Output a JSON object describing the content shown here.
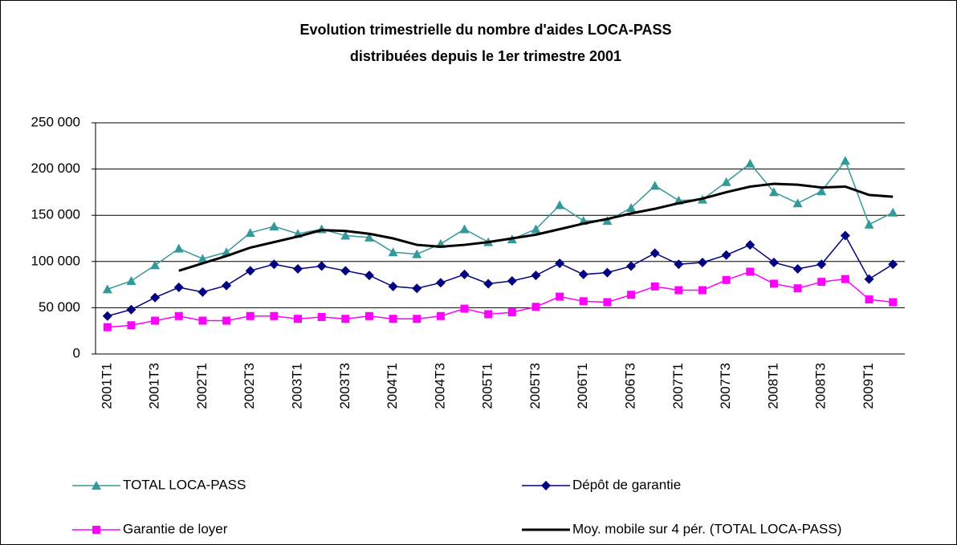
{
  "chart_data": {
    "type": "line",
    "title": [
      "Evolution trimestrielle du nombre d'aides  LOCA-PASS",
      "distribuées depuis le 1er trimestre 2001"
    ],
    "categories": [
      "2001T1",
      null,
      "2001T3",
      null,
      "2002T1",
      null,
      "2002T3",
      null,
      "2003T1",
      null,
      "2003T3",
      null,
      "2004T1",
      null,
      "2004T3",
      null,
      "2005T1",
      null,
      "2005T3",
      null,
      "2006T1",
      null,
      "2006T3",
      null,
      "2007T1",
      null,
      "2007T3",
      null,
      "2008T1",
      null,
      "2008T3",
      null,
      "2009T1",
      null
    ],
    "series": [
      {
        "name": "TOTAL LOCA-PASS",
        "color": "#339999",
        "marker": "triangle",
        "values": [
          70000,
          79000,
          96000,
          114000,
          103000,
          110000,
          131000,
          138000,
          130000,
          135000,
          128000,
          126000,
          110000,
          108000,
          119000,
          135000,
          121000,
          124000,
          135000,
          161000,
          144000,
          144000,
          158000,
          182000,
          166000,
          167000,
          186000,
          206000,
          175000,
          163000,
          176000,
          209000,
          140000,
          153000
        ]
      },
      {
        "name": "Dépôt de garantie",
        "color": "#000080",
        "marker": "diamond",
        "values": [
          41000,
          48000,
          61000,
          72000,
          67000,
          74000,
          90000,
          97000,
          92000,
          95000,
          90000,
          85000,
          73000,
          71000,
          77000,
          86000,
          76000,
          79000,
          85000,
          98000,
          86000,
          88000,
          95000,
          109000,
          97000,
          99000,
          107000,
          118000,
          99000,
          92000,
          97000,
          128000,
          81000,
          97000
        ]
      },
      {
        "name": "Garantie de loyer",
        "color": "#ff00ff",
        "marker": "square",
        "values": [
          29000,
          31000,
          36000,
          41000,
          36000,
          36000,
          41000,
          41000,
          38000,
          40000,
          38000,
          41000,
          38000,
          38000,
          41000,
          49000,
          43000,
          45000,
          51000,
          62000,
          57000,
          56000,
          64000,
          73000,
          69000,
          69000,
          80000,
          89000,
          76000,
          71000,
          78000,
          81000,
          59000,
          56000
        ]
      },
      {
        "name": "Moy. mobile sur 4 pér. (TOTAL LOCA-PASS)",
        "color": "#000000",
        "marker": "none",
        "values": [
          null,
          null,
          null,
          90000,
          98000,
          106000,
          115000,
          121000,
          127000,
          134000,
          133000,
          130000,
          125000,
          118000,
          116000,
          118000,
          121000,
          125000,
          129000,
          135000,
          141000,
          146000,
          152000,
          157000,
          163000,
          168000,
          175000,
          181000,
          184000,
          183000,
          180000,
          181000,
          172000,
          170000
        ]
      }
    ],
    "ylim": [
      0,
      250000
    ],
    "yticks": [
      0,
      {
        "value": 50000,
        "label": "50 000"
      },
      {
        "value": 100000,
        "label": "100 000"
      },
      {
        "value": 150000,
        "label": "150 000"
      },
      {
        "value": 200000,
        "label": "200 000"
      },
      {
        "value": 250000,
        "label": "250 000"
      }
    ],
    "grid": true,
    "legend": "bottom"
  }
}
